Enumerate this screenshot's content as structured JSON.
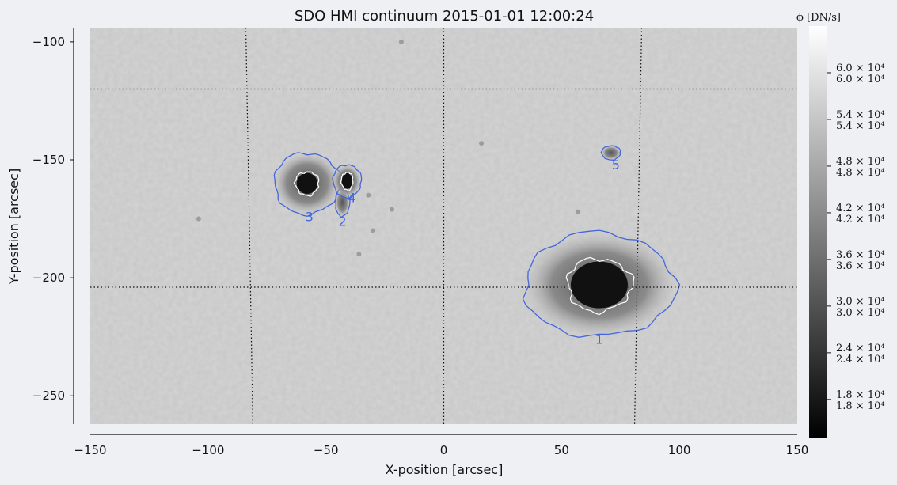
{
  "chart_data": {
    "type": "heatmap",
    "title": "SDO HMI continuum 2015-01-01 12:00:24",
    "xlabel": "X-position [arcsec]",
    "ylabel": "Y-position [arcsec]",
    "xlim": [
      -150,
      150
    ],
    "ylim": [
      -262,
      -94
    ],
    "x_ticks": [
      {
        "value": -150,
        "label": "−150"
      },
      {
        "value": -100,
        "label": "−100"
      },
      {
        "value": -50,
        "label": "−50"
      },
      {
        "value": 0,
        "label": "0"
      },
      {
        "value": 50,
        "label": "50"
      },
      {
        "value": 100,
        "label": "100"
      },
      {
        "value": 150,
        "label": "150"
      }
    ],
    "y_ticks": [
      {
        "value": -100,
        "label": "−100"
      },
      {
        "value": -150,
        "label": "−150"
      },
      {
        "value": -200,
        "label": "−200"
      },
      {
        "value": -250,
        "label": "−250"
      }
    ],
    "colorbar": {
      "label": "ϕ [DN/s]",
      "colormap": "gray",
      "range": [
        13000,
        66000
      ],
      "ticks": [
        {
          "value": 60000,
          "label": "6.0 × 10⁴"
        },
        {
          "value": 54000,
          "label": "5.4 × 10⁴"
        },
        {
          "value": 48000,
          "label": "4.8 × 10⁴"
        },
        {
          "value": 42000,
          "label": "4.2 × 10⁴"
        },
        {
          "value": 36000,
          "label": "3.6 × 10⁴"
        },
        {
          "value": 30000,
          "label": "3.0 × 10⁴"
        },
        {
          "value": 24000,
          "label": "2.4 × 10⁴"
        },
        {
          "value": 18000,
          "label": "1.8 × 10⁴"
        }
      ]
    },
    "contours": {
      "outer_color": "#4466dd",
      "inner_color": "#ffffff"
    },
    "regions": [
      {
        "label": "1",
        "x": 66,
        "y": -203,
        "rx": 32,
        "ry": 22,
        "umbra_rx": 11,
        "umbra_ry": 9,
        "label_x": 66,
        "label_y": -228
      },
      {
        "label": "2",
        "x": -43,
        "y": -168,
        "rx": 3,
        "ry": 6,
        "umbra_rx": 0,
        "umbra_ry": 0,
        "label_x": -43,
        "label_y": -178
      },
      {
        "label": "3",
        "x": -58,
        "y": -160,
        "rx": 14,
        "ry": 13,
        "umbra_rx": 4,
        "umbra_ry": 4,
        "label_x": -57,
        "label_y": -176
      },
      {
        "label": "4",
        "x": -41,
        "y": -159,
        "rx": 6,
        "ry": 7,
        "umbra_rx": 2,
        "umbra_ry": 3,
        "label_x": -39,
        "label_y": -168
      },
      {
        "label": "5",
        "x": 71,
        "y": -147,
        "rx": 4,
        "ry": 3,
        "umbra_rx": 0,
        "umbra_ry": 0,
        "label_x": 73,
        "label_y": -154
      }
    ],
    "pores": [
      {
        "x": -32,
        "y": -165
      },
      {
        "x": -22,
        "y": -171
      },
      {
        "x": -30,
        "y": -180
      },
      {
        "x": 57,
        "y": -172
      },
      {
        "x": -36,
        "y": -190
      },
      {
        "x": -104,
        "y": -175
      },
      {
        "x": -18,
        "y": -100
      },
      {
        "x": 16,
        "y": -143
      }
    ],
    "grid_lines": [
      {
        "points": [
          [
            -150,
            -120
          ],
          [
            150,
            -120
          ]
        ]
      },
      {
        "points": [
          [
            -150,
            -204
          ],
          [
            150,
            -204
          ]
        ]
      },
      {
        "points": [
          [
            -84,
            -94
          ],
          [
            -81,
            -262
          ]
        ]
      },
      {
        "points": [
          [
            0,
            -94
          ],
          [
            0,
            -262
          ]
        ]
      },
      {
        "points": [
          [
            84,
            -94
          ],
          [
            81,
            -262
          ]
        ]
      }
    ],
    "grid": true
  }
}
